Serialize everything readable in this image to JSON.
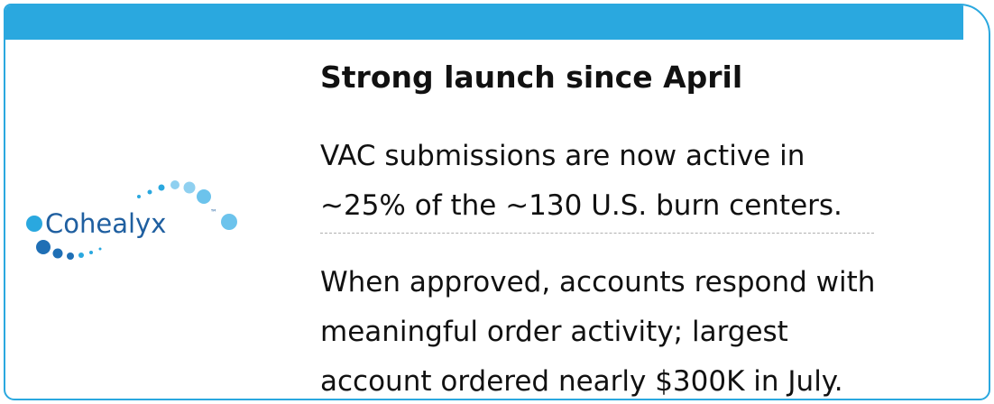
{
  "logo": {
    "name": "Cohealyx",
    "mark": "™"
  },
  "title": "Strong launch since April",
  "paragraphs": [
    [
      "VAC submissions are now active in",
      "~25% of the ~130 U.S. burn centers."
    ],
    [
      "When approved, accounts respond with",
      "meaningful order activity; largest",
      "account ordered nearly $300K in July."
    ]
  ]
}
